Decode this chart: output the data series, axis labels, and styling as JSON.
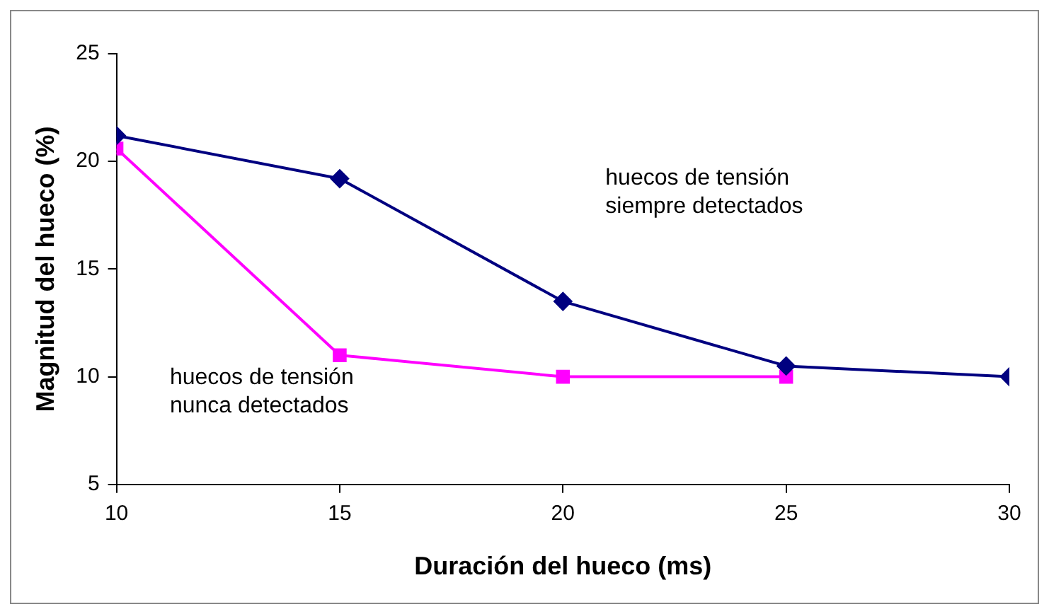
{
  "chart_data": {
    "type": "line",
    "xlabel": "Duración del hueco (ms)",
    "ylabel": "Magnitud del hueco (%)",
    "x": [
      10,
      15,
      20,
      25,
      30
    ],
    "series": [
      {
        "color": "#000080",
        "marker": "diamond",
        "values": [
          21.2,
          19.2,
          13.5,
          10.5,
          10.0
        ]
      },
      {
        "color": "#ff00ff",
        "marker": "square",
        "values": [
          20.6,
          11.0,
          10.0,
          10.0,
          null
        ]
      }
    ],
    "annotations": [
      "huecos de tensión siempre detectados",
      "huecos de tensión nunca detectados"
    ],
    "xlim": [
      10,
      30
    ],
    "xticks": [
      10,
      15,
      20,
      25,
      30
    ],
    "ylim": [
      5,
      25
    ],
    "yticks": [
      5,
      10,
      15,
      20,
      25
    ],
    "grid": false,
    "legend": false,
    "line_style": "solid"
  }
}
